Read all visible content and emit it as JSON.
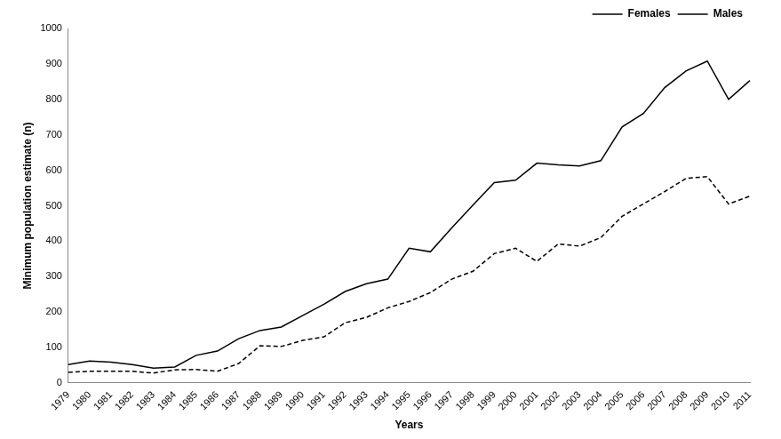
{
  "chart_data": {
    "type": "line",
    "x_label": "Years",
    "y_label": "Minimum population estimate (n)",
    "categories": [
      "1979",
      "1980",
      "1981",
      "1982",
      "1983",
      "1984",
      "1985",
      "1986",
      "1987",
      "1988",
      "1989",
      "1990",
      "1991",
      "1992",
      "1993",
      "1994",
      "1995",
      "1996",
      "1997",
      "1998",
      "1999",
      "2000",
      "2001",
      "2002",
      "2003",
      "2004",
      "2005",
      "2006",
      "2007",
      "2008",
      "2009",
      "2010",
      "2011"
    ],
    "series": [
      {
        "name": "Females",
        "color": "#000000",
        "line_style": "solid",
        "values": [
          52,
          62,
          59,
          52,
          42,
          45,
          78,
          90,
          125,
          148,
          158,
          190,
          222,
          258,
          280,
          293,
          380,
          370,
          437,
          502,
          565,
          572,
          620,
          615,
          612,
          627,
          722,
          760,
          833,
          880,
          908,
          800,
          853
        ]
      },
      {
        "name": "Males",
        "color": "#000000",
        "line_style": "dashed",
        "values": [
          30,
          33,
          33,
          33,
          28,
          37,
          38,
          33,
          55,
          105,
          103,
          120,
          130,
          170,
          185,
          212,
          230,
          255,
          293,
          315,
          365,
          380,
          343,
          392,
          386,
          410,
          470,
          505,
          540,
          577,
          582,
          505,
          527
        ]
      }
    ],
    "ylim": [
      0,
      1000
    ],
    "yticks": [
      0,
      100,
      200,
      300,
      400,
      500,
      600,
      700,
      800,
      900,
      1000
    ],
    "grid": false,
    "legend": "top-right"
  }
}
